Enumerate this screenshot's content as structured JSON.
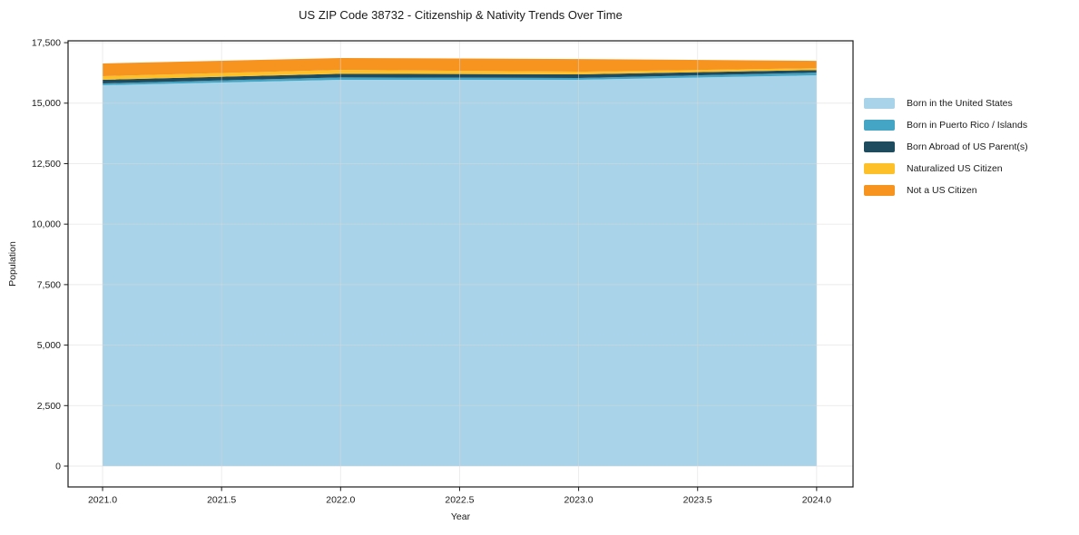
{
  "chart_data": {
    "type": "area",
    "stacked": true,
    "title": "US ZIP Code 38732 - Citizenship & Nativity Trends Over Time",
    "xlabel": "Year",
    "ylabel": "Population",
    "x": [
      2021,
      2022,
      2023,
      2024
    ],
    "series": [
      {
        "name": "Born in the United States",
        "color": "#a8d3e8",
        "values": [
          15740,
          15965,
          15965,
          16150
        ]
      },
      {
        "name": "Born in Puerto Rico / Islands",
        "color": "#45a5c5",
        "values": [
          75,
          100,
          75,
          110
        ]
      },
      {
        "name": "Born Abroad of US Parent(s)",
        "color": "#1f4b5e",
        "values": [
          150,
          150,
          150,
          110
        ]
      },
      {
        "name": "Naturalized US Citizen",
        "color": "#fdc029",
        "values": [
          150,
          160,
          110,
          75
        ]
      },
      {
        "name": "Not a US Citizen",
        "color": "#f7941f",
        "values": [
          525,
          490,
          525,
          305
        ]
      }
    ],
    "x_ticks": [
      2021.0,
      2021.5,
      2022.0,
      2022.5,
      2023.0,
      2023.5,
      2024.0
    ],
    "x_tick_labels": [
      "2021.0",
      "2021.5",
      "2022.0",
      "2022.5",
      "2023.0",
      "2023.5",
      "2024.0"
    ],
    "y_ticks": [
      0,
      2500,
      5000,
      7500,
      10000,
      12500,
      15000,
      17500
    ],
    "y_tick_labels": [
      "0",
      "2,500",
      "5,000",
      "7,500",
      "10,000",
      "12,500",
      "15,000",
      "17,500"
    ],
    "xlim": [
      2020.855,
      2024.153
    ],
    "ylim": [
      -862,
      17577
    ],
    "grid": true,
    "legend_position": "right",
    "text_color": "#1a1a1a",
    "grid_color": "#d9d9d9",
    "spine_color": "#1a1a1a",
    "background": "#ffffff"
  }
}
